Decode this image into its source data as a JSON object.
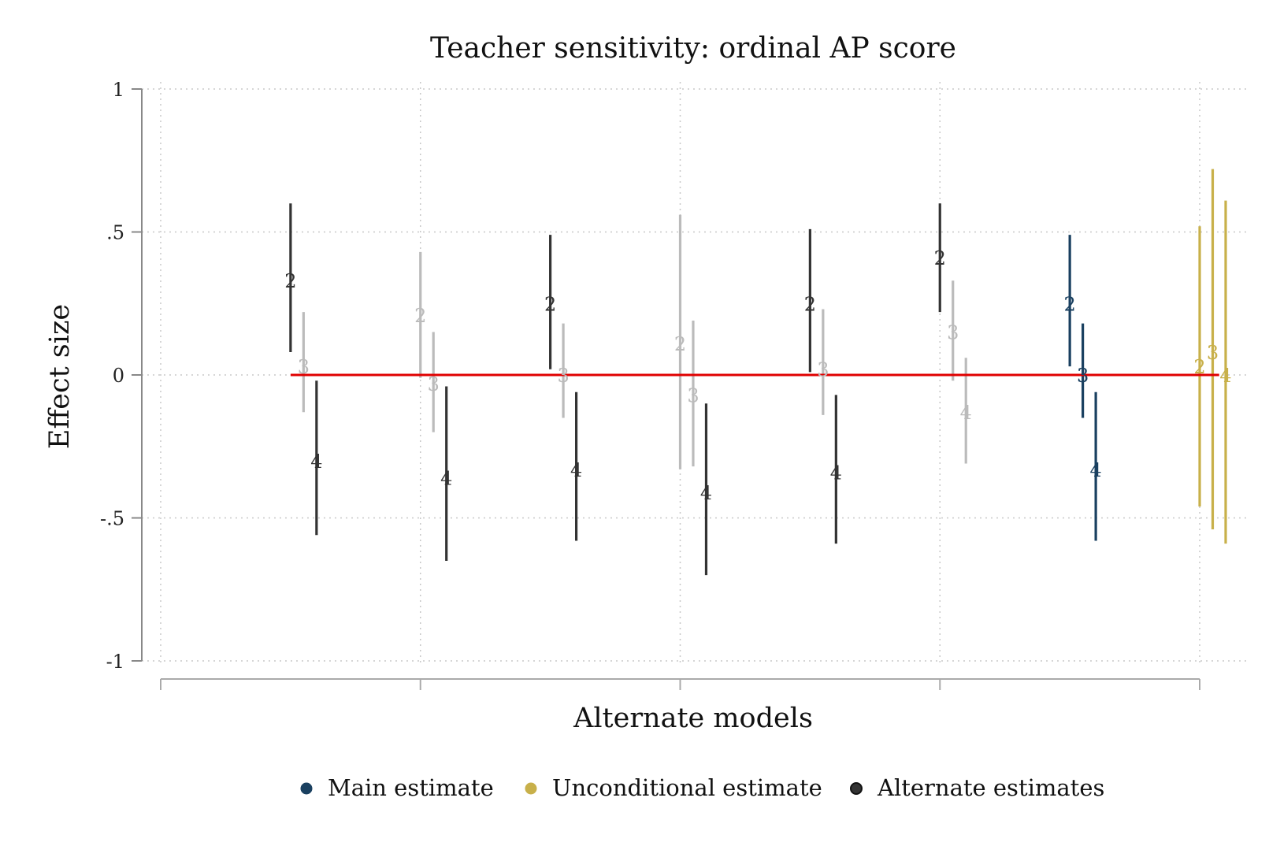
{
  "chart_data": {
    "type": "errorbar",
    "title": "Teacher sensitivity: ordinal AP score",
    "xlabel": "Alternate models",
    "ylabel": "Effect size",
    "ylim": [
      -1,
      1
    ],
    "yticks": [
      1,
      0.5,
      0,
      -0.5,
      -1
    ],
    "ytick_labels": [
      "1",
      ".5",
      "0",
      "-.5",
      "-1"
    ],
    "xlim": [
      0,
      8.15
    ],
    "xticks": [
      0,
      2,
      4,
      6,
      8
    ],
    "grid": true,
    "legend_position": "bottom",
    "reference_line": {
      "y": 0,
      "x_from": 1.0,
      "x_to": 8.15,
      "color": "#e00000"
    },
    "colors": {
      "main": "#1a4060",
      "unconditional": "#c8b04a",
      "alternate": "#333333",
      "alternate_insignificant": "#bbbbbb"
    },
    "legend": [
      {
        "label": "Main estimate",
        "group": "main"
      },
      {
        "label": "Unconditional estimate",
        "group": "unconditional"
      },
      {
        "label": "Alternate estimates",
        "group": "alternate"
      }
    ],
    "series": [
      {
        "x": 1.0,
        "label": "2",
        "estimate": 0.33,
        "lo": 0.08,
        "hi": 0.6,
        "group": "alternate"
      },
      {
        "x": 1.1,
        "label": "3",
        "estimate": 0.03,
        "lo": -0.13,
        "hi": 0.22,
        "group": "alternate_insignificant"
      },
      {
        "x": 1.2,
        "label": "4",
        "estimate": -0.3,
        "lo": -0.56,
        "hi": -0.02,
        "group": "alternate"
      },
      {
        "x": 2.0,
        "label": "2",
        "estimate": 0.21,
        "lo": -0.01,
        "hi": 0.43,
        "group": "alternate_insignificant"
      },
      {
        "x": 2.1,
        "label": "3",
        "estimate": -0.03,
        "lo": -0.2,
        "hi": 0.15,
        "group": "alternate_insignificant"
      },
      {
        "x": 2.2,
        "label": "4",
        "estimate": -0.36,
        "lo": -0.65,
        "hi": -0.04,
        "group": "alternate"
      },
      {
        "x": 3.0,
        "label": "2",
        "estimate": 0.25,
        "lo": 0.02,
        "hi": 0.49,
        "group": "alternate"
      },
      {
        "x": 3.1,
        "label": "3",
        "estimate": 0.0,
        "lo": -0.15,
        "hi": 0.18,
        "group": "alternate_insignificant"
      },
      {
        "x": 3.2,
        "label": "4",
        "estimate": -0.33,
        "lo": -0.58,
        "hi": -0.06,
        "group": "alternate"
      },
      {
        "x": 4.0,
        "label": "2",
        "estimate": 0.11,
        "lo": -0.33,
        "hi": 0.56,
        "group": "alternate_insignificant"
      },
      {
        "x": 4.1,
        "label": "3",
        "estimate": -0.07,
        "lo": -0.32,
        "hi": 0.19,
        "group": "alternate_insignificant"
      },
      {
        "x": 4.2,
        "label": "4",
        "estimate": -0.41,
        "lo": -0.7,
        "hi": -0.1,
        "group": "alternate"
      },
      {
        "x": 5.0,
        "label": "2",
        "estimate": 0.25,
        "lo": 0.01,
        "hi": 0.51,
        "group": "alternate"
      },
      {
        "x": 5.1,
        "label": "3",
        "estimate": 0.02,
        "lo": -0.14,
        "hi": 0.23,
        "group": "alternate_insignificant"
      },
      {
        "x": 5.2,
        "label": "4",
        "estimate": -0.34,
        "lo": -0.59,
        "hi": -0.07,
        "group": "alternate"
      },
      {
        "x": 6.0,
        "label": "2",
        "estimate": 0.41,
        "lo": 0.22,
        "hi": 0.6,
        "group": "alternate"
      },
      {
        "x": 6.1,
        "label": "3",
        "estimate": 0.15,
        "lo": -0.02,
        "hi": 0.33,
        "group": "alternate_insignificant"
      },
      {
        "x": 6.2,
        "label": "4",
        "estimate": -0.13,
        "lo": -0.31,
        "hi": 0.06,
        "group": "alternate_insignificant"
      },
      {
        "x": 7.0,
        "label": "2",
        "estimate": 0.25,
        "lo": 0.03,
        "hi": 0.49,
        "group": "main"
      },
      {
        "x": 7.1,
        "label": "3",
        "estimate": 0.0,
        "lo": -0.15,
        "hi": 0.18,
        "group": "main"
      },
      {
        "x": 7.2,
        "label": "4",
        "estimate": -0.33,
        "lo": -0.58,
        "hi": -0.06,
        "group": "main"
      },
      {
        "x": 8.0,
        "label": "2",
        "estimate": 0.03,
        "lo": -0.46,
        "hi": 0.52,
        "group": "unconditional"
      },
      {
        "x": 8.1,
        "label": "3",
        "estimate": 0.08,
        "lo": -0.54,
        "hi": 0.72,
        "group": "unconditional"
      },
      {
        "x": 8.2,
        "label": "4",
        "estimate": 0.0,
        "lo": -0.59,
        "hi": 0.61,
        "group": "unconditional"
      }
    ]
  }
}
